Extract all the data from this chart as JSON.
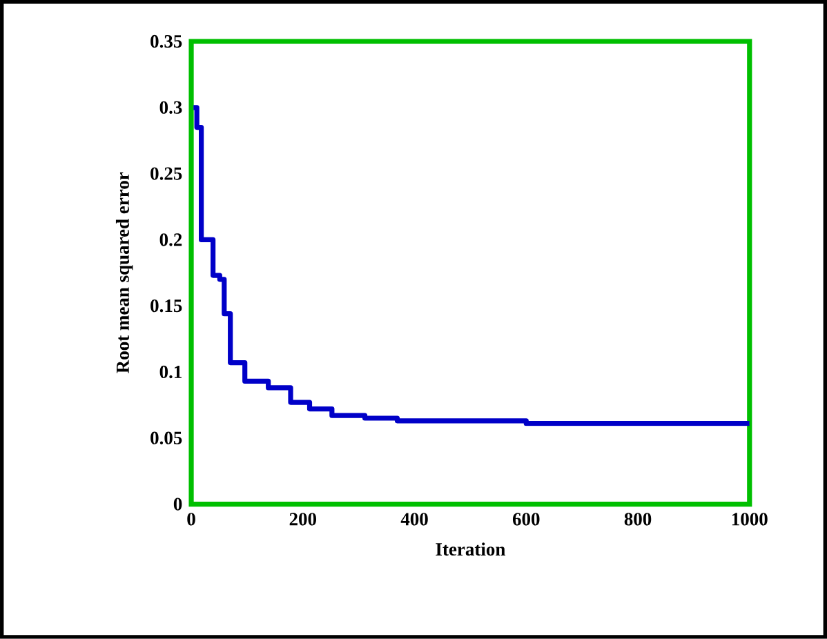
{
  "chart_data": {
    "type": "step",
    "xlabel": "Iteration",
    "ylabel": "Root mean squared error",
    "xlim": [
      0,
      1000
    ],
    "ylim": [
      0,
      0.35
    ],
    "xticks": [
      0,
      200,
      400,
      600,
      800,
      1000
    ],
    "yticks": [
      0,
      0.05,
      0.1,
      0.15,
      0.2,
      0.25,
      0.3,
      0.35
    ],
    "series": [
      {
        "color": "#0000c8",
        "x": [
          4,
          10,
          18,
          30,
          39,
          51,
          59,
          70,
          96,
          138,
          178,
          212,
          252,
          311,
          369,
          600,
          1000
        ],
        "values": [
          0.3,
          0.285,
          0.2,
          0.2,
          0.173,
          0.17,
          0.144,
          0.107,
          0.093,
          0.088,
          0.077,
          0.072,
          0.067,
          0.065,
          0.063,
          0.061,
          0.061
        ]
      }
    ],
    "marker": "none",
    "line_style": "solid"
  }
}
